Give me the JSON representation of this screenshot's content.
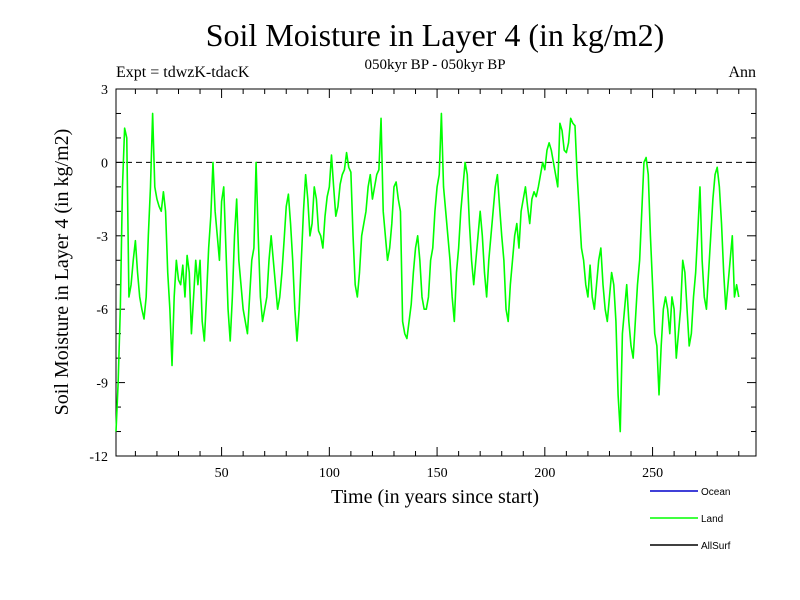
{
  "chart_data": {
    "type": "line",
    "title": "Soil Moisture in Layer 4 (in kg/m2)",
    "subtitle": "050kyr BP - 050kyr BP",
    "left_label": "Expt = tdwzK-tdacK",
    "right_label": "Ann",
    "xlabel": "Time (in years since start)",
    "ylabel": "Soil Moisture in Layer 4 (in kg/m2)",
    "xlim": [
      1,
      298
    ],
    "ylim": [
      -12,
      3
    ],
    "xticks": [
      50,
      100,
      150,
      200,
      250
    ],
    "yticks": [
      3,
      0,
      -3,
      -6,
      -9,
      -12
    ],
    "ytick_labels": [
      "3",
      "0",
      "-3",
      "-6",
      "-9",
      "-12"
    ],
    "reference_line": 0,
    "legend_position": "bottom-right",
    "legend": [
      {
        "name": "Ocean",
        "color": "#0000cc"
      },
      {
        "name": "Land",
        "color": "#00ff00"
      },
      {
        "name": "AllSurf",
        "color": "#000000"
      }
    ],
    "series": [
      {
        "name": "Land",
        "color": "#00ff00",
        "x_start": 1,
        "x_step": 1,
        "values": [
          -11.0,
          -9.0,
          -6.0,
          -1.0,
          1.4,
          1.0,
          -5.5,
          -5.0,
          -4.0,
          -3.2,
          -4.5,
          -5.5,
          -6.0,
          -6.4,
          -5.5,
          -3.0,
          -1.0,
          2.0,
          -1.0,
          -1.5,
          -1.8,
          -2.0,
          -1.2,
          -2.0,
          -4.5,
          -6.0,
          -8.3,
          -5.5,
          -4.0,
          -4.8,
          -5.0,
          -4.2,
          -5.5,
          -3.8,
          -4.5,
          -7.0,
          -5.5,
          -4.0,
          -5.0,
          -4.0,
          -6.5,
          -7.3,
          -5.5,
          -3.5,
          -2.2,
          0.0,
          -2.0,
          -3.0,
          -4.0,
          -1.6,
          -1.0,
          -3.5,
          -6.0,
          -7.3,
          -5.5,
          -3.0,
          -1.5,
          -4.0,
          -5.0,
          -6.0,
          -6.5,
          -7.0,
          -5.5,
          -4.0,
          -3.5,
          0.0,
          -3.0,
          -5.5,
          -6.5,
          -6.0,
          -5.5,
          -4.0,
          -3.0,
          -4.0,
          -5.0,
          -6.0,
          -5.5,
          -4.5,
          -3.2,
          -1.8,
          -1.3,
          -2.5,
          -4.0,
          -6.0,
          -7.3,
          -6.0,
          -4.0,
          -2.0,
          -0.5,
          -1.5,
          -3.0,
          -2.5,
          -1.0,
          -1.5,
          -2.8,
          -3.0,
          -3.5,
          -2.2,
          -1.4,
          -1.0,
          0.3,
          -1.0,
          -2.2,
          -1.8,
          -0.9,
          -0.5,
          -0.3,
          0.4,
          -0.2,
          -0.4,
          -3.0,
          -5.0,
          -5.5,
          -4.5,
          -3.0,
          -2.5,
          -2.0,
          -1.0,
          -0.5,
          -1.5,
          -1.0,
          -0.5,
          -0.3,
          1.8,
          -2.0,
          -3.0,
          -4.0,
          -3.5,
          -2.5,
          -1.0,
          -0.8,
          -1.5,
          -2.0,
          -6.5,
          -7.0,
          -7.2,
          -6.5,
          -5.8,
          -4.5,
          -3.5,
          -3.0,
          -4.0,
          -5.5,
          -6.0,
          -6.0,
          -5.5,
          -4.0,
          -3.5,
          -2.0,
          -1.0,
          -0.5,
          2.0,
          -1.0,
          -2.0,
          -3.0,
          -4.0,
          -5.5,
          -6.5,
          -4.5,
          -3.5,
          -2.0,
          -1.0,
          0.0,
          -0.5,
          -2.5,
          -4.0,
          -5.0,
          -4.0,
          -3.0,
          -2.0,
          -3.0,
          -4.5,
          -5.5,
          -4.0,
          -3.0,
          -2.0,
          -1.0,
          -0.5,
          -1.8,
          -3.0,
          -4.0,
          -6.0,
          -6.5,
          -5.0,
          -4.0,
          -3.0,
          -2.5,
          -3.5,
          -2.0,
          -1.5,
          -1.0,
          -1.8,
          -2.5,
          -1.5,
          -1.2,
          -1.4,
          -1.0,
          -0.5,
          0.0,
          -0.3,
          0.5,
          0.8,
          0.5,
          0.0,
          -0.5,
          -1.0,
          1.6,
          1.3,
          0.5,
          0.4,
          0.8,
          1.8,
          1.6,
          1.5,
          -0.5,
          -2.0,
          -3.5,
          -4.0,
          -5.0,
          -5.5,
          -4.2,
          -5.5,
          -6.0,
          -5.0,
          -4.0,
          -3.5,
          -5.0,
          -6.0,
          -6.5,
          -5.5,
          -4.5,
          -5.0,
          -6.5,
          -9.5,
          -11.0,
          -7.0,
          -6.0,
          -5.0,
          -6.5,
          -7.5,
          -8.0,
          -6.5,
          -5.0,
          -4.0,
          -2.0,
          0.0,
          0.2,
          -0.5,
          -3.0,
          -5.0,
          -7.0,
          -7.5,
          -9.5,
          -7.5,
          -6.0,
          -5.5,
          -6.0,
          -7.0,
          -5.5,
          -6.0,
          -8.0,
          -7.0,
          -6.0,
          -4.0,
          -4.5,
          -6.0,
          -7.5,
          -7.0,
          -5.5,
          -4.5,
          -2.8,
          -1.0,
          -4.0,
          -5.5,
          -6.0,
          -4.5,
          -3.0,
          -1.5,
          -0.5,
          -0.2,
          -1.0,
          -2.5,
          -4.5,
          -6.0,
          -5.0,
          -4.0,
          -3.0,
          -5.5,
          -5.0,
          -5.5
        ]
      }
    ]
  }
}
